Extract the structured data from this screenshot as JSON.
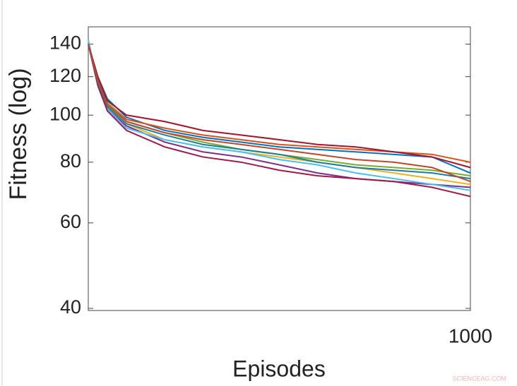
{
  "chart_data": {
    "type": "line",
    "x_label": "Episodes",
    "y_label": "Fitness (log)",
    "watermark": "SCIENCEAG.COM",
    "x": [
      0,
      25,
      50,
      100,
      200,
      300,
      400,
      500,
      600,
      700,
      800,
      900,
      1000
    ],
    "xlim": [
      0,
      1000
    ],
    "xticks": [
      1000
    ],
    "ylim": [
      39.6,
      152
    ],
    "yticks": [
      40,
      60,
      80,
      100,
      120,
      140
    ],
    "log_y": true,
    "grid": false,
    "series": [
      {
        "color": "#0072BD",
        "values": [
          140,
          120,
          108,
          99,
          93,
          90,
          88,
          86,
          85,
          84,
          83,
          82,
          76
        ]
      },
      {
        "color": "#D95319",
        "values": [
          140,
          118,
          106,
          98,
          94,
          91,
          89,
          87,
          86,
          85,
          84,
          83,
          80
        ]
      },
      {
        "color": "#EDB120",
        "values": [
          140,
          117,
          104,
          96,
          89,
          86,
          84,
          82,
          80,
          78,
          76,
          74,
          72
        ]
      },
      {
        "color": "#7E2F8E",
        "values": [
          140,
          116,
          103,
          95,
          88,
          84,
          82,
          79,
          76,
          74,
          73,
          72,
          71
        ]
      },
      {
        "color": "#77AC30",
        "values": [
          140,
          119,
          106,
          97,
          92,
          88,
          85,
          83,
          81,
          79,
          78,
          77,
          75
        ]
      },
      {
        "color": "#4DBEEE",
        "values": [
          143,
          116,
          103,
          94,
          89,
          86,
          84,
          81,
          79,
          76,
          74,
          72,
          70
        ]
      },
      {
        "color": "#A2142F",
        "values": [
          140,
          120,
          107,
          100,
          97,
          93,
          91,
          89,
          87,
          86,
          84,
          82,
          78
        ]
      },
      {
        "color": "#9E1A4A",
        "values": [
          140,
          115,
          102,
          93,
          86,
          82,
          80,
          77,
          75,
          74,
          73,
          71,
          68
        ]
      },
      {
        "color": "#1B7F9A",
        "values": [
          140,
          117,
          104,
          96,
          91,
          87,
          85,
          83,
          80,
          78,
          77,
          76,
          74
        ]
      },
      {
        "color": "#C0462A",
        "values": [
          140,
          118,
          105,
          97,
          92,
          89,
          87,
          85,
          83,
          81,
          80,
          78,
          73
        ]
      }
    ]
  }
}
